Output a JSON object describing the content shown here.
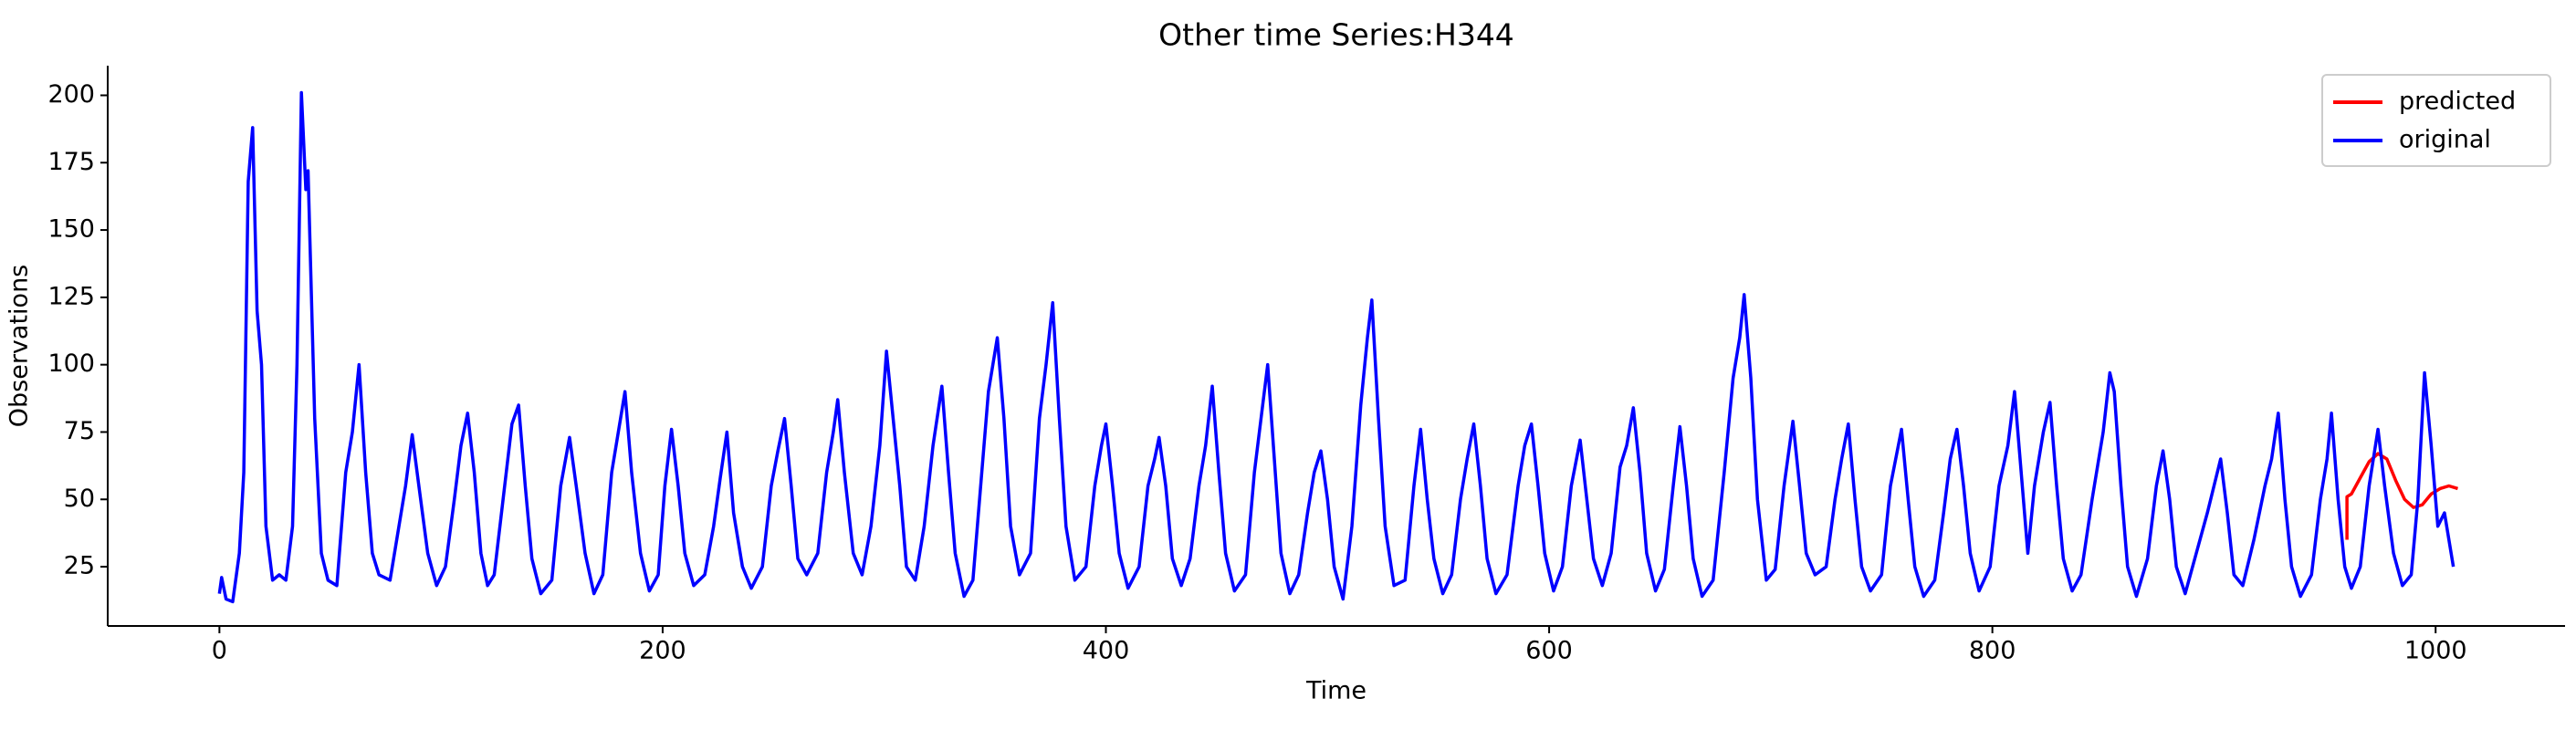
{
  "chart_data": {
    "type": "line",
    "title": "Other time Series:H344",
    "xlabel": "Time",
    "ylabel": "Observations",
    "xlim": [
      -50.4,
      1058.4
    ],
    "ylim": [
      3,
      211
    ],
    "xticks": [
      0,
      200,
      400,
      600,
      800,
      1000
    ],
    "yticks": [
      25,
      50,
      75,
      100,
      125,
      150,
      175,
      200
    ],
    "legend": "upper right",
    "grid": false,
    "series": [
      {
        "name": "predicted",
        "color": "#ff0000",
        "x": [
          960,
          960,
          962,
          966,
          970,
          974,
          978,
          982,
          986,
          990,
          994,
          998,
          1002,
          1006,
          1010
        ],
        "values": [
          35,
          51,
          52,
          58,
          64,
          67,
          65,
          57,
          50,
          47,
          48,
          52,
          54,
          55,
          54
        ]
      },
      {
        "name": "original",
        "color": "#0000ff",
        "x": [
          0,
          1,
          3,
          6,
          9,
          11,
          13,
          15,
          17,
          19,
          21,
          24,
          27,
          30,
          33,
          35,
          36,
          37,
          39,
          40,
          43,
          46,
          49,
          53,
          57,
          60,
          63,
          66,
          69,
          72,
          77,
          80,
          84,
          87,
          90,
          94,
          98,
          102,
          106,
          109,
          112,
          115,
          118,
          121,
          124,
          128,
          132,
          135,
          138,
          141,
          145,
          150,
          154,
          158,
          161,
          165,
          169,
          173,
          177,
          180,
          183,
          186,
          190,
          194,
          198,
          201,
          204,
          207,
          210,
          214,
          219,
          223,
          226,
          229,
          232,
          236,
          240,
          245,
          249,
          252,
          255,
          258,
          261,
          265,
          270,
          274,
          277,
          279,
          282,
          286,
          290,
          294,
          298,
          301,
          304,
          307,
          310,
          314,
          318,
          322,
          326,
          329,
          332,
          336,
          340,
          344,
          347,
          351,
          354,
          357,
          361,
          366,
          370,
          373,
          376,
          379,
          382,
          386,
          391,
          395,
          398,
          400,
          403,
          406,
          410,
          415,
          419,
          422,
          424,
          427,
          430,
          434,
          438,
          442,
          445,
          448,
          451,
          454,
          458,
          463,
          467,
          470,
          473,
          476,
          479,
          483,
          487,
          491,
          494,
          497,
          500,
          503,
          507,
          511,
          515,
          518,
          520,
          523,
          526,
          530,
          535,
          539,
          542,
          545,
          548,
          552,
          556,
          560,
          563,
          566,
          569,
          572,
          576,
          581,
          586,
          589,
          592,
          595,
          598,
          602,
          606,
          610,
          614,
          617,
          620,
          624,
          628,
          632,
          635,
          638,
          641,
          644,
          648,
          652,
          656,
          659,
          662,
          665,
          669,
          674,
          679,
          683,
          686,
          688,
          691,
          694,
          698,
          702,
          706,
          710,
          713,
          716,
          720,
          725,
          729,
          732,
          735,
          738,
          741,
          745,
          750,
          754,
          759,
          762,
          765,
          769,
          774,
          778,
          781,
          784,
          787,
          790,
          794,
          799,
          803,
          807,
          810,
          813,
          816,
          819,
          823,
          826,
          829,
          832,
          836,
          840,
          845,
          850,
          853,
          855,
          858,
          861,
          865,
          870,
          874,
          877,
          880,
          883,
          887,
          892,
          897,
          900,
          903,
          906,
          909,
          913,
          918,
          923,
          926,
          929,
          932,
          935,
          939,
          944,
          948,
          951,
          953,
          956,
          959,
          962,
          966,
          970,
          974,
          977,
          981,
          985,
          989,
          992,
          995,
          998,
          1001,
          1004,
          1006,
          1008
        ],
        "values": [
          15,
          21,
          13,
          12,
          30,
          60,
          168,
          188,
          120,
          100,
          40,
          20,
          22,
          20,
          40,
          100,
          150,
          201,
          165,
          172,
          80,
          30,
          20,
          18,
          60,
          75,
          100,
          60,
          30,
          22,
          20,
          35,
          55,
          74,
          55,
          30,
          18,
          25,
          50,
          70,
          82,
          60,
          30,
          18,
          22,
          50,
          78,
          85,
          55,
          28,
          15,
          20,
          55,
          73,
          55,
          30,
          15,
          22,
          60,
          75,
          90,
          60,
          30,
          16,
          22,
          55,
          76,
          55,
          30,
          18,
          22,
          40,
          58,
          75,
          45,
          25,
          17,
          25,
          55,
          68,
          80,
          55,
          28,
          22,
          30,
          60,
          75,
          87,
          60,
          30,
          22,
          40,
          70,
          105,
          80,
          55,
          25,
          20,
          40,
          70,
          92,
          60,
          30,
          14,
          20,
          60,
          90,
          110,
          80,
          40,
          22,
          30,
          80,
          100,
          123,
          80,
          40,
          20,
          25,
          55,
          70,
          78,
          55,
          30,
          17,
          25,
          55,
          65,
          73,
          55,
          28,
          18,
          28,
          55,
          70,
          92,
          60,
          30,
          16,
          22,
          60,
          80,
          100,
          65,
          30,
          15,
          22,
          45,
          60,
          68,
          50,
          25,
          13,
          40,
          85,
          110,
          124,
          80,
          40,
          18,
          20,
          55,
          76,
          50,
          28,
          15,
          22,
          50,
          65,
          78,
          55,
          28,
          15,
          22,
          55,
          70,
          78,
          55,
          30,
          16,
          25,
          55,
          72,
          50,
          28,
          18,
          30,
          62,
          70,
          84,
          60,
          30,
          16,
          24,
          55,
          77,
          55,
          28,
          14,
          20,
          60,
          95,
          110,
          126,
          95,
          50,
          20,
          24,
          55,
          79,
          55,
          30,
          22,
          25,
          50,
          65,
          78,
          50,
          25,
          16,
          22,
          55,
          76,
          50,
          25,
          14,
          20,
          45,
          65,
          76,
          55,
          30,
          16,
          25,
          55,
          70,
          90,
          60,
          30,
          55,
          75,
          86,
          55,
          28,
          16,
          22,
          50,
          75,
          97,
          90,
          55,
          25,
          14,
          28,
          55,
          68,
          50,
          25,
          15,
          30,
          45,
          55,
          65,
          45,
          22,
          18,
          35,
          55,
          65,
          82,
          50,
          25,
          14,
          22,
          50,
          65,
          82,
          50,
          25,
          17,
          25,
          55,
          76,
          55,
          30,
          18,
          22,
          50,
          97,
          70,
          40,
          45,
          35,
          25
        ]
      }
    ]
  }
}
